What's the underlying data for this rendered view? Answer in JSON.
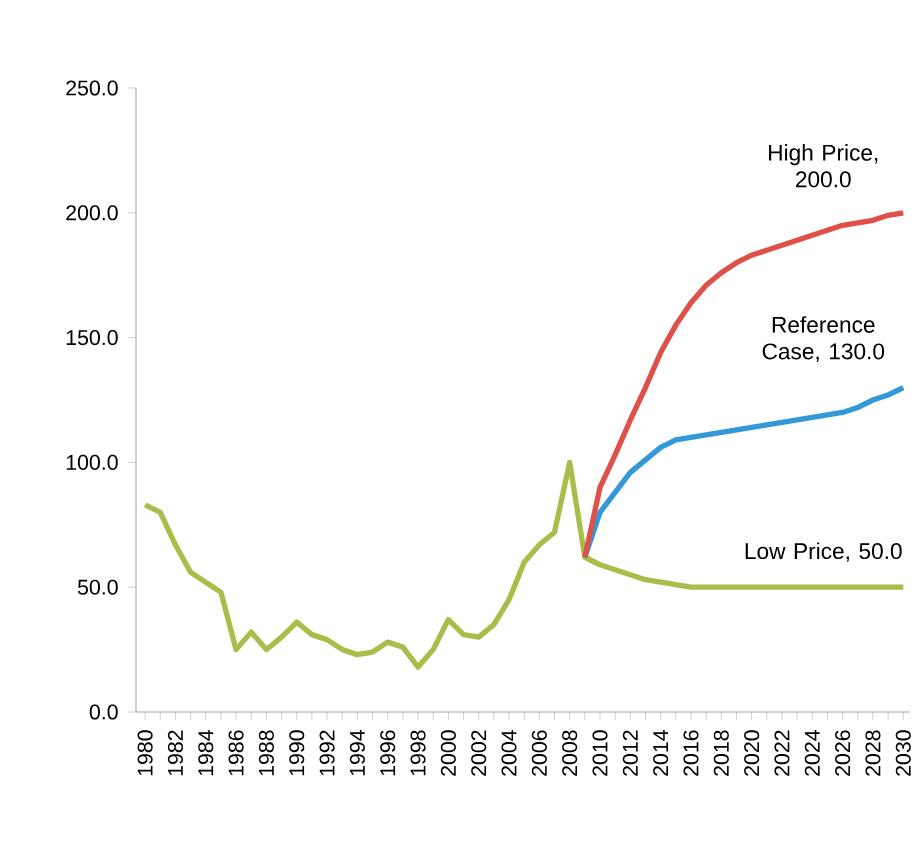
{
  "chart_data": {
    "type": "line",
    "categories": [
      "1980",
      null,
      "1982",
      null,
      "1984",
      null,
      "1986",
      null,
      "1988",
      null,
      "1990",
      null,
      "1992",
      null,
      "1994",
      null,
      "1996",
      null,
      "1998",
      null,
      "2000",
      null,
      "2002",
      null,
      "2004",
      null,
      "2006",
      null,
      "2008",
      null,
      "2010",
      null,
      "2012",
      null,
      "2014",
      null,
      "2016",
      null,
      "2018",
      null,
      "2020",
      null,
      "2022",
      null,
      "2024",
      null,
      "2026",
      null,
      "2028",
      null,
      "2030"
    ],
    "series": [
      {
        "color": "#a9bd4a",
        "values": [
          83,
          80,
          67,
          56,
          52,
          48,
          25,
          32,
          25,
          30,
          36,
          31,
          29,
          25,
          23,
          24,
          28,
          26,
          18,
          25,
          37,
          31,
          30,
          35,
          45,
          60,
          67,
          72,
          100,
          62,
          59,
          57,
          55,
          53,
          52,
          51,
          50,
          50,
          50,
          50,
          50,
          50,
          50,
          50,
          50,
          50,
          50,
          50,
          50,
          50,
          50
        ]
      },
      {
        "color": "#3398d8",
        "values": [
          null,
          null,
          null,
          null,
          null,
          null,
          null,
          null,
          null,
          null,
          null,
          null,
          null,
          null,
          null,
          null,
          null,
          null,
          null,
          null,
          null,
          null,
          null,
          null,
          null,
          null,
          null,
          null,
          null,
          62,
          80,
          88,
          96,
          101,
          106,
          109,
          110,
          111,
          112,
          113,
          114,
          115,
          116,
          117,
          118,
          119,
          120,
          122,
          125,
          127,
          130
        ]
      },
      {
        "color": "#e0504a",
        "values": [
          null,
          null,
          null,
          null,
          null,
          null,
          null,
          null,
          null,
          null,
          null,
          null,
          null,
          null,
          null,
          null,
          null,
          null,
          null,
          null,
          null,
          null,
          null,
          null,
          null,
          null,
          null,
          null,
          null,
          62,
          90,
          103,
          117,
          130,
          144,
          155,
          164,
          171,
          176,
          180,
          183,
          185,
          187,
          189,
          191,
          193,
          195,
          196,
          197,
          199,
          200
        ]
      }
    ],
    "ylim": [
      0,
      250
    ],
    "yticks": [
      {
        "value": 0,
        "label": "0.0"
      },
      {
        "value": 50,
        "label": "50.0"
      },
      {
        "value": 100,
        "label": "100.0"
      },
      {
        "value": 150,
        "label": "150.0"
      },
      {
        "value": 200,
        "label": "200.0"
      },
      {
        "value": 250,
        "label": "250.0"
      }
    ],
    "grid": false,
    "legend": false,
    "marker": "none",
    "line_style": "solid",
    "annotations": [
      {
        "text": "High Price, 200.0",
        "x": "2030",
        "y": 200
      },
      {
        "text": "Reference Case, 130.0",
        "x": "2030",
        "y": 130
      },
      {
        "text": "Low Price, 50.0",
        "x": "2030",
        "y": 50
      }
    ]
  }
}
